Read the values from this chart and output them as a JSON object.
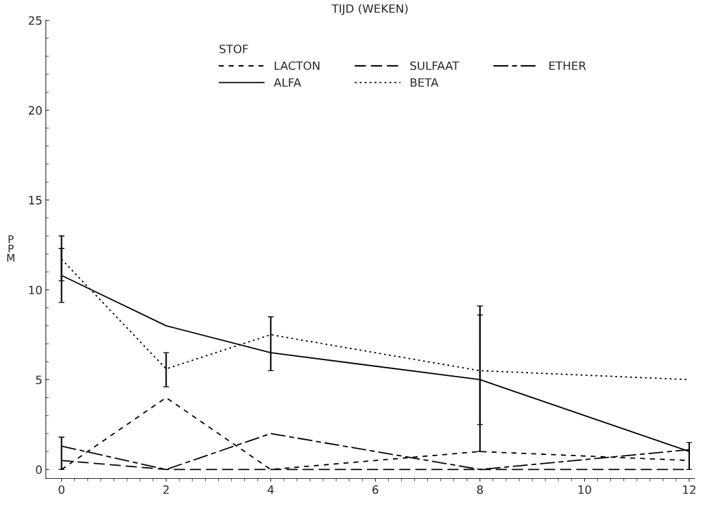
{
  "chart_data": {
    "type": "line",
    "xlabel": "TIJD (WEKEN)",
    "ylabel": "PPM",
    "legend_title": "STOF",
    "legend": "top",
    "grid": false,
    "marker": "none",
    "x": [
      0,
      2,
      4,
      8,
      12
    ],
    "xlim": [
      -0.3,
      12.1
    ],
    "xticks": [
      0,
      2,
      4,
      6,
      8,
      10,
      12
    ],
    "ylim": [
      -0.5,
      25
    ],
    "yticks": [
      0,
      5,
      10,
      15,
      20,
      25
    ],
    "series": [
      {
        "name": "LACTON",
        "color": "#000000",
        "line_style": "dashed",
        "values": [
          0,
          4.0,
          0,
          1.0,
          0.5
        ]
      },
      {
        "name": "ALFA",
        "color": "#000000",
        "line_style": "solid",
        "values": [
          10.8,
          8.0,
          6.5,
          5.0,
          1.0
        ],
        "errors": [
          [
            9.3,
            13.0
          ],
          null,
          null,
          [
            1.0,
            9.1
          ],
          [
            0,
            1.5
          ]
        ]
      },
      {
        "name": "SULFAAT",
        "color": "#000000",
        "line_style": "longdash",
        "values": [
          0.5,
          0,
          0,
          0,
          0
        ]
      },
      {
        "name": "BETA",
        "color": "#000000",
        "line_style": "dotted",
        "values": [
          11.7,
          5.6,
          7.5,
          5.5,
          5.0
        ],
        "errors": [
          [
            10.5,
            12.3
          ],
          [
            4.6,
            6.5
          ],
          [
            5.5,
            8.5
          ],
          [
            2.5,
            8.6
          ],
          null
        ]
      },
      {
        "name": "ETHER",
        "color": "#000000",
        "line_style": "dashdot",
        "values": [
          1.3,
          0,
          2.0,
          0,
          1.1
        ],
        "errors": [
          [
            0,
            1.8
          ],
          null,
          null,
          null,
          null
        ]
      }
    ]
  }
}
